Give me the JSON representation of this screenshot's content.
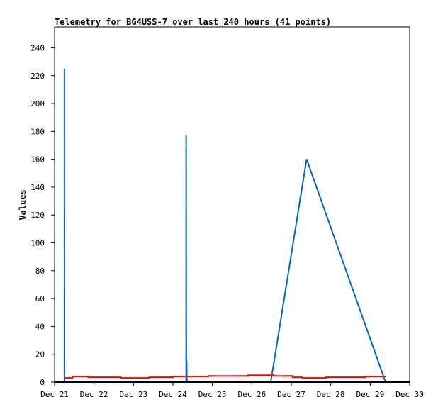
{
  "chart_data": {
    "type": "line",
    "title": "Telemetry for BG4USS-7 over last 240 hours (41 points)",
    "xlabel": "",
    "ylabel": "Values",
    "xlim": [
      "2023-12-21T00:00",
      "2023-12-30T00:00"
    ],
    "ylim": [
      0,
      255
    ],
    "x_ticks": [
      "Dec 21",
      "Dec 22",
      "Dec 23",
      "Dec 24",
      "Dec 25",
      "Dec 26",
      "Dec 27",
      "Dec 28",
      "Dec 29",
      "Dec 30"
    ],
    "y_ticks": [
      0,
      20,
      40,
      60,
      80,
      100,
      120,
      140,
      160,
      180,
      200,
      220,
      240
    ],
    "grid": false,
    "series": [
      {
        "color": "#0066cc",
        "style": "line",
        "points": [
          [
            "2023-12-21T06:00",
            0
          ],
          [
            "2023-12-21T06:00",
            225
          ],
          [
            "2023-12-21T06:01",
            0
          ],
          [
            "2023-12-24T08:00",
            0
          ],
          [
            "2023-12-24T08:00",
            177
          ],
          [
            "2023-12-24T08:10",
            0
          ],
          [
            "2023-12-24T08:20",
            16
          ],
          [
            "2023-12-24T08:30",
            0
          ],
          [
            "2023-12-26T11:30",
            0
          ],
          [
            "2023-12-27T09:20",
            160
          ],
          [
            "2023-12-29T09:20",
            0
          ]
        ]
      },
      {
        "color": "#ff0000",
        "style": "step",
        "points": [
          [
            "2023-12-21T06:00",
            3
          ],
          [
            "2023-12-21T11:00",
            4
          ],
          [
            "2023-12-21T20:30",
            3.5
          ],
          [
            "2023-12-22T16:20",
            3
          ],
          [
            "2023-12-23T09:30",
            3.5
          ],
          [
            "2023-12-24T00:15",
            4
          ],
          [
            "2023-12-24T21:30",
            4.5
          ],
          [
            "2023-12-25T21:40",
            5
          ],
          [
            "2023-12-26T13:10",
            4.5
          ],
          [
            "2023-12-27T00:45",
            3.5
          ],
          [
            "2023-12-27T06:45",
            3
          ],
          [
            "2023-12-27T21:00",
            3.5
          ],
          [
            "2023-12-28T21:20",
            4
          ],
          [
            "2023-12-29T09:20",
            4
          ]
        ]
      }
    ]
  }
}
